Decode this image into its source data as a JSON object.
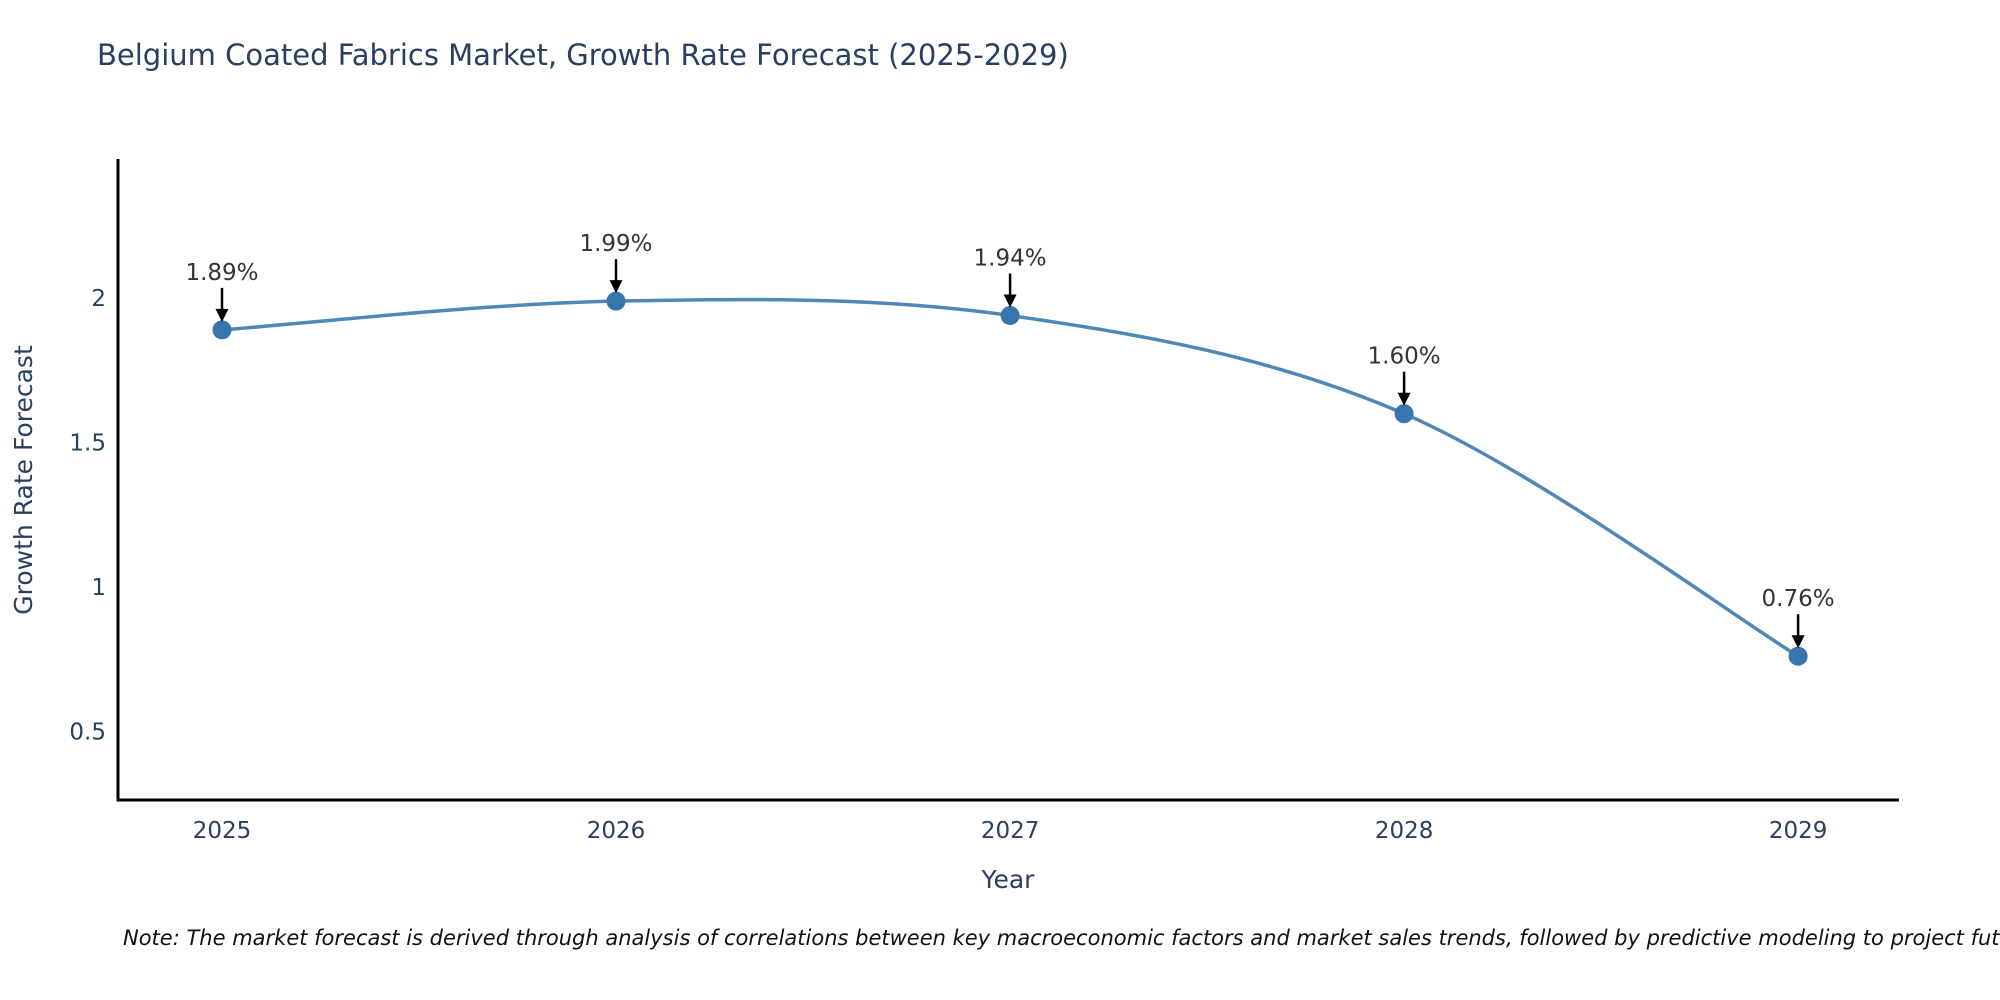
{
  "note": "Note: The market forecast is derived through analysis of correlations between key macroeconomic factors and market sales trends, followed by predictive modeling to project future sales",
  "chart_data": {
    "type": "line",
    "line_shape": "spline",
    "title": "Belgium Coated Fabrics Market, Growth Rate Forecast (2025-2029)",
    "xlabel": "Year",
    "ylabel": "Growth Rate Forecast",
    "x": [
      2025,
      2026,
      2027,
      2028,
      2029
    ],
    "series": [
      {
        "name": "Growth Rate Forecast",
        "values": [
          1.89,
          1.99,
          1.94,
          1.6,
          0.76
        ]
      }
    ],
    "point_labels": [
      "1.89%",
      "1.99%",
      "1.94%",
      "1.60%",
      "0.76%"
    ],
    "xtick_labels": [
      "2025",
      "2026",
      "2027",
      "2028",
      "2029"
    ],
    "xtick_values": [
      2025,
      2026,
      2027,
      2028,
      2029
    ],
    "ytick_labels": [
      "0.5",
      "1",
      "1.5",
      "2"
    ],
    "ytick_values": [
      0.5,
      1,
      1.5,
      2
    ],
    "xlim": [
      2024.736,
      2029.256
    ],
    "ylim": [
      0.262,
      2.482
    ],
    "grid": false,
    "legend": "none",
    "colors": {
      "line": "#4f87b7",
      "marker": "#3675ae",
      "axis_line": "#000000",
      "axis_text": "#2a3f5f",
      "annotation": "#333333",
      "arrow": "#000000",
      "title": "#2a3f5f"
    }
  }
}
